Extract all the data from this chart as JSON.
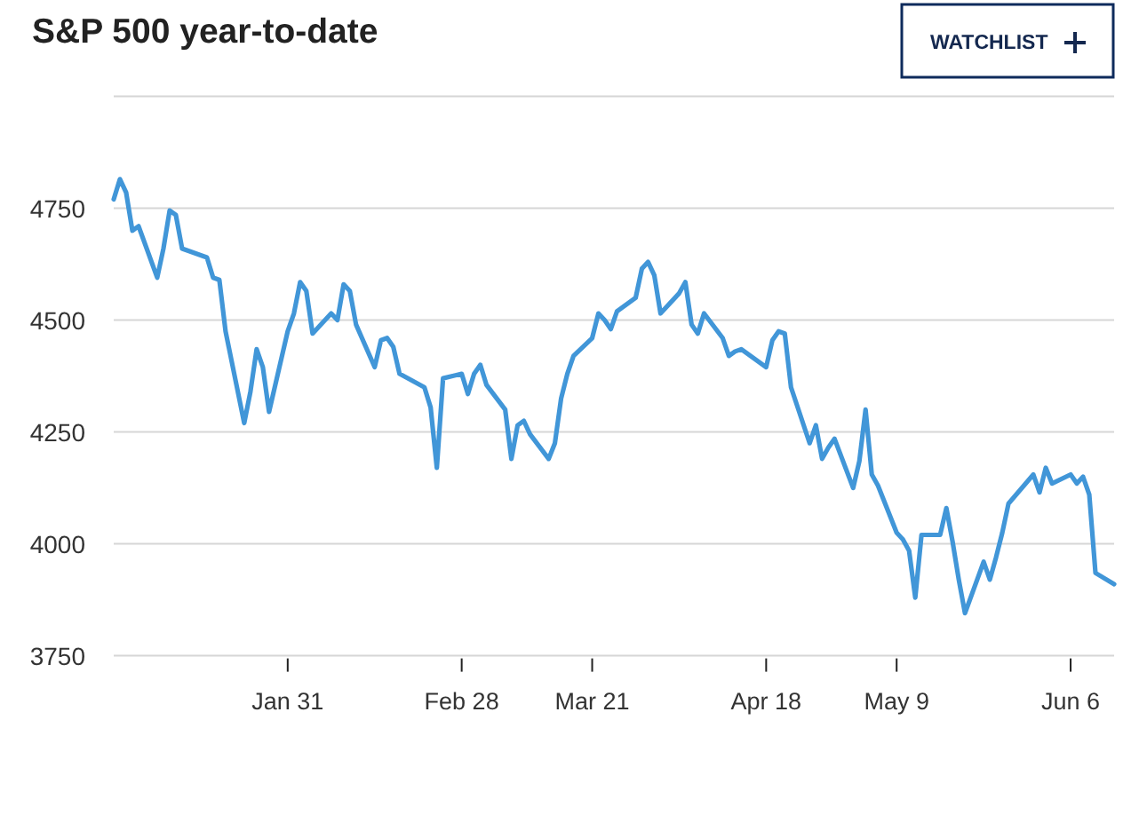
{
  "chart_data": {
    "type": "line",
    "title": "S&P 500 year-to-date",
    "annotations": [
      "WATCHLIST"
    ],
    "x": [
      "--01-03",
      "--01-04",
      "--01-05",
      "--01-06",
      "--01-07",
      "--01-10",
      "--01-11",
      "--01-12",
      "--01-13",
      "--01-14",
      "--01-18",
      "--01-19",
      "--01-20",
      "--01-21",
      "--01-24",
      "--01-25",
      "--01-26",
      "--01-27",
      "--01-28",
      "--01-31",
      "--02-01",
      "--02-02",
      "--02-03",
      "--02-04",
      "--02-07",
      "--02-08",
      "--02-09",
      "--02-10",
      "--02-11",
      "--02-14",
      "--02-15",
      "--02-16",
      "--02-17",
      "--02-18",
      "--02-22",
      "--02-23",
      "--02-24",
      "--02-25",
      "--02-28",
      "--03-01",
      "--03-02",
      "--03-03",
      "--03-04",
      "--03-07",
      "--03-08",
      "--03-09",
      "--03-10",
      "--03-11",
      "--03-14",
      "--03-15",
      "--03-16",
      "--03-17",
      "--03-18",
      "--03-21",
      "--03-22",
      "--03-23",
      "--03-24",
      "--03-25",
      "--03-28",
      "--03-29",
      "--03-30",
      "--03-31",
      "--04-01",
      "--04-04",
      "--04-05",
      "--04-06",
      "--04-07",
      "--04-08",
      "--04-11",
      "--04-12",
      "--04-13",
      "--04-14",
      "--04-18",
      "--04-19",
      "--04-20",
      "--04-21",
      "--04-22",
      "--04-25",
      "--04-26",
      "--04-27",
      "--04-28",
      "--04-29",
      "--05-02",
      "--05-03",
      "--05-04",
      "--05-05",
      "--05-06",
      "--05-09",
      "--05-10",
      "--05-11",
      "--05-12",
      "--05-13",
      "--05-16",
      "--05-17",
      "--05-18",
      "--05-19",
      "--05-20",
      "--05-23",
      "--05-24",
      "--05-25",
      "--05-26",
      "--05-27",
      "--05-31",
      "--06-01",
      "--06-02",
      "--06-03",
      "--06-06",
      "--06-07",
      "--06-08",
      "--06-09",
      "--06-10",
      "--06-13"
    ],
    "series": [
      {
        "color": "#4196d8",
        "values": [
          4770,
          4815,
          4785,
          4700,
          4710,
          4595,
          4660,
          4745,
          4735,
          4660,
          4640,
          4595,
          4590,
          4475,
          4270,
          4340,
          4435,
          4395,
          4295,
          4475,
          4515,
          4585,
          4565,
          4470,
          4515,
          4500,
          4580,
          4565,
          4490,
          4395,
          4455,
          4460,
          4440,
          4380,
          4350,
          4305,
          4170,
          4370,
          4380,
          4335,
          4380,
          4400,
          4355,
          4300,
          4190,
          4265,
          4275,
          4245,
          4190,
          4225,
          4325,
          4380,
          4420,
          4460,
          4515,
          4500,
          4480,
          4520,
          4550,
          4615,
          4630,
          4600,
          4515,
          4560,
          4585,
          4490,
          4470,
          4515,
          4460,
          4420,
          4430,
          4435,
          4395,
          4455,
          4475,
          4470,
          4350,
          4225,
          4265,
          4190,
          4215,
          4235,
          4125,
          4185,
          4300,
          4155,
          4130,
          4025,
          4010,
          3985,
          3880,
          4020,
          4020,
          4080,
          4005,
          3920,
          3845,
          3960,
          3920,
          3970,
          4025,
          4090,
          4155,
          4115,
          4170,
          4135,
          4155,
          4135,
          4150,
          4110,
          3935,
          3910
        ]
      }
    ],
    "xlim": [
      "--01-03",
      "--06-13"
    ],
    "xticks": [
      {
        "value": "--01-31",
        "label": "Jan 31"
      },
      {
        "value": "--02-28",
        "label": "Feb 28"
      },
      {
        "value": "--03-21",
        "label": "Mar 21"
      },
      {
        "value": "--04-18",
        "label": "Apr 18"
      },
      {
        "value": "--05-09",
        "label": "May 9"
      },
      {
        "value": "--06-06",
        "label": "Jun 6"
      }
    ],
    "ylim": [
      3750,
      5000
    ],
    "yticks": [
      3750,
      4000,
      4250,
      4500,
      4750,
      {
        "value": 5000,
        "label": null
      }
    ],
    "grid": "y"
  }
}
